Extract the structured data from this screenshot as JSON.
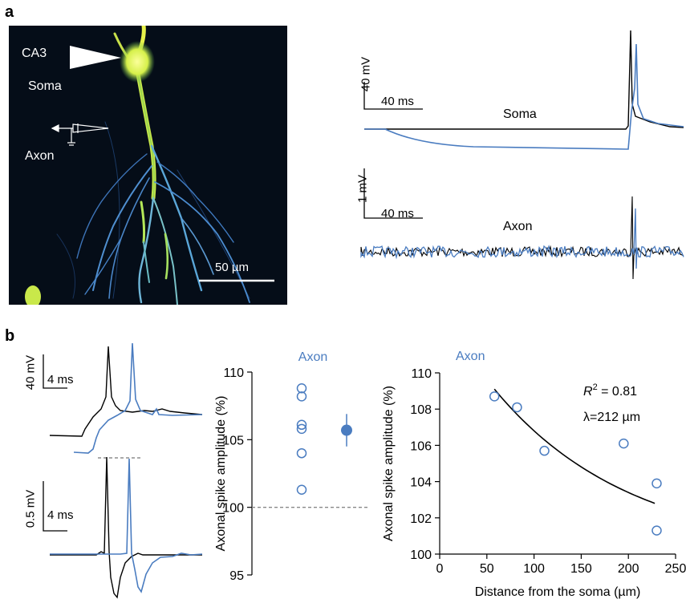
{
  "panel_a": {
    "letter": "a",
    "image_labels": {
      "region": "CA3",
      "soma": "Soma",
      "axon": "Axon",
      "scale_bar": "50 µm"
    },
    "traces": {
      "soma": {
        "label": "Soma",
        "scale_v": "40 mV",
        "scale_t": "40 ms"
      },
      "axon": {
        "label": "Axon",
        "scale_v": "1 mV",
        "scale_t": "40 ms"
      }
    }
  },
  "panel_b": {
    "letter": "b",
    "soma_inset": {
      "scale_v": "40 mV",
      "scale_t": "4 ms"
    },
    "axon_inset": {
      "scale_v": "0.5 mV",
      "scale_t": "4 ms"
    }
  },
  "colors": {
    "black_trace": "#000000",
    "blue_trace": "#4a7cc0"
  },
  "chart_data": [
    {
      "type": "scatter",
      "title": "Axon",
      "xlabel": "",
      "ylabel": "Axonal spike amplitude (%)",
      "ylim": [
        95,
        110
      ],
      "yticks": [
        95,
        100,
        105,
        110
      ],
      "reference_line": 100,
      "series": [
        {
          "values": [
            108.8,
            108.2,
            106.1,
            105.8,
            104.0,
            101.3
          ],
          "marker": "open-circle"
        },
        {
          "values": [
            105.7
          ],
          "error": 1.2,
          "marker": "filled-circle"
        }
      ]
    },
    {
      "type": "scatter",
      "title": "Axon",
      "xlabel": "Distance from the soma (µm)",
      "ylabel": "Axonal spike amplitude (%)",
      "xlim": [
        0,
        250
      ],
      "ylim": [
        100,
        110
      ],
      "xticks": [
        0,
        50,
        100,
        150,
        200,
        250
      ],
      "yticks": [
        100,
        102,
        104,
        106,
        108,
        110
      ],
      "points": [
        [
          58,
          108.7
        ],
        [
          82,
          108.1
        ],
        [
          111,
          105.7
        ],
        [
          195,
          106.1
        ],
        [
          230,
          103.9
        ],
        [
          230,
          101.3
        ]
      ],
      "fit": {
        "type": "exponential",
        "lambda": 212,
        "x_range": [
          58,
          228
        ],
        "y_start": 109.1,
        "y_end": 102.8
      },
      "annotations": [
        "= 0.81",
        "λ=212 µm"
      ],
      "annotation_symbol": "R",
      "annotation_sup": "2"
    }
  ]
}
